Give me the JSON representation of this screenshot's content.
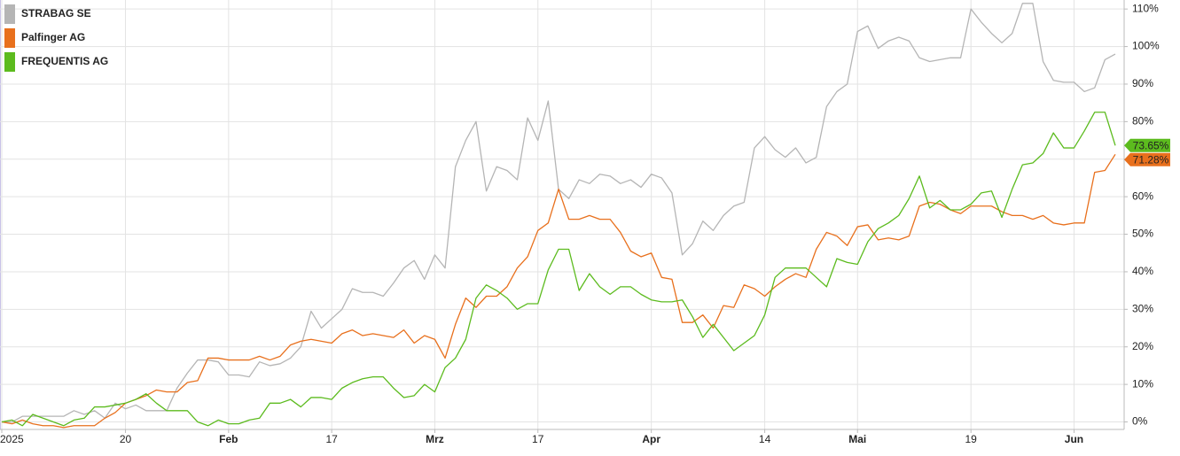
{
  "chart_data": {
    "type": "line",
    "categories": [
      "2025",
      null,
      null,
      null,
      null,
      null,
      null,
      null,
      null,
      null,
      null,
      null,
      "20",
      null,
      null,
      null,
      null,
      null,
      null,
      null,
      null,
      null,
      "Feb",
      null,
      null,
      null,
      null,
      null,
      null,
      null,
      null,
      null,
      "17",
      null,
      null,
      null,
      null,
      null,
      null,
      null,
      null,
      null,
      "Mrz",
      null,
      null,
      null,
      null,
      null,
      null,
      null,
      null,
      null,
      "17",
      null,
      null,
      null,
      null,
      null,
      null,
      null,
      null,
      null,
      null,
      "Apr",
      null,
      null,
      null,
      null,
      null,
      null,
      null,
      null,
      null,
      null,
      "14",
      null,
      null,
      null,
      null,
      null,
      null,
      null,
      null,
      "Mai",
      null,
      null,
      null,
      null,
      null,
      null,
      null,
      null,
      null,
      null,
      "19",
      null,
      null,
      null,
      null,
      null,
      null,
      null,
      null,
      null,
      "Jun",
      null,
      null,
      null,
      null
    ],
    "series": [
      {
        "name": "STRABAG SE",
        "color": "#b5b5b5",
        "values": [
          0,
          0,
          1.5,
          1.5,
          1.5,
          1.5,
          1.5,
          3,
          2,
          3,
          1,
          5,
          3.5,
          4.5,
          3,
          3,
          3,
          9,
          13,
          16.5,
          16.5,
          16,
          12.5,
          12.5,
          12,
          16,
          15,
          15.5,
          17,
          20,
          29.5,
          25,
          27.5,
          30,
          35.5,
          34.5,
          34.5,
          33.5,
          37,
          41,
          43,
          38,
          44.5,
          41,
          68,
          75,
          80,
          61.5,
          68,
          67,
          64.5,
          81,
          75,
          85.5,
          62,
          59.5,
          64.5,
          63.5,
          66,
          65.5,
          63.5,
          64.5,
          62.5,
          66,
          65,
          61,
          44.5,
          47.5,
          53.5,
          51,
          55,
          57.5,
          58.5,
          73,
          76,
          72.5,
          70.5,
          73,
          69,
          70.5,
          84,
          88,
          90,
          104,
          105.5,
          99.5,
          101.5,
          102.5,
          101.5,
          97,
          96,
          96.5,
          97,
          97,
          110,
          106.5,
          103.5,
          101,
          103.5,
          111.5,
          111.5,
          96,
          91,
          90.5,
          90.5,
          88,
          89,
          96.5,
          98
        ]
      },
      {
        "name": "Palfinger AG",
        "color": "#e8701d",
        "values": [
          0,
          -0.5,
          0.5,
          -0.5,
          -1,
          -1,
          -1.5,
          -1,
          -1,
          -1,
          1,
          2.5,
          5,
          6,
          7,
          8.5,
          8,
          8,
          10.5,
          11,
          17,
          17,
          16.5,
          16.5,
          16.5,
          17.5,
          16.5,
          17.5,
          20.5,
          21.5,
          22,
          21.5,
          21,
          23.5,
          24.5,
          23,
          23.5,
          23,
          22.5,
          24.5,
          21,
          23,
          22,
          17,
          26,
          33,
          30.5,
          33.5,
          33.5,
          36,
          41,
          44,
          51,
          53,
          62,
          54,
          54,
          55,
          54,
          54,
          50.5,
          45.5,
          44,
          45,
          38.5,
          38,
          26.5,
          26.5,
          28.5,
          25,
          31,
          30.5,
          36.5,
          35.5,
          33.5,
          36,
          38,
          39.5,
          38.5,
          46,
          50.5,
          49.5,
          47,
          52,
          52.5,
          48.5,
          49,
          48.5,
          49.5,
          57.5,
          58.5,
          58,
          56.5,
          55.5,
          57.5,
          57.5,
          57.5,
          56,
          55,
          55,
          54,
          55,
          53,
          52.5,
          53,
          53,
          66.5,
          67,
          71.28
        ],
        "value_labels": [
          null,
          null,
          null,
          null,
          null,
          null,
          null,
          null,
          null,
          null,
          null,
          null,
          null,
          null,
          null,
          null,
          null,
          null,
          null,
          null,
          null,
          null,
          null,
          null,
          null,
          null,
          null,
          null,
          null,
          null,
          null,
          null,
          null,
          null,
          null,
          null,
          null,
          null,
          null,
          null,
          null,
          null,
          null,
          null,
          null,
          null,
          null,
          null,
          null,
          null,
          null,
          null,
          null,
          null,
          null,
          null,
          null,
          null,
          null,
          null,
          null,
          null,
          null,
          null,
          null,
          null,
          null,
          null,
          null,
          null,
          null,
          null,
          null,
          null,
          null,
          null,
          null,
          null,
          null,
          null,
          null,
          null,
          null,
          null,
          null,
          null,
          null,
          null,
          null,
          null,
          null,
          null,
          null,
          null,
          null,
          null,
          null,
          null,
          null,
          null,
          null,
          null,
          null,
          null,
          null,
          null,
          null,
          null,
          "71.28%"
        ]
      },
      {
        "name": "FREQUENTIS AG",
        "color": "#5cbb1e",
        "values": [
          0,
          0.5,
          -1,
          2,
          1,
          0,
          -1,
          0.5,
          1,
          4,
          4,
          4.5,
          5,
          6,
          7.5,
          5,
          3,
          3,
          3,
          0,
          -1,
          0.5,
          -0.5,
          -0.5,
          0.5,
          1,
          5,
          5,
          6,
          4,
          6.5,
          6.5,
          6,
          9,
          10.5,
          11.5,
          12,
          12,
          9,
          6.5,
          7,
          10,
          8,
          14.5,
          17,
          22,
          33,
          36.5,
          35,
          33,
          30,
          31.5,
          31.5,
          40.5,
          46,
          46,
          35,
          39.5,
          36,
          34,
          36,
          36,
          34,
          32.5,
          32,
          32,
          32.5,
          28,
          22.5,
          26,
          22.5,
          19,
          21,
          23,
          28.5,
          38.5,
          41,
          41,
          41,
          38.5,
          36,
          43.5,
          42.5,
          42,
          48,
          51.5,
          53,
          55,
          59.5,
          65.5,
          57,
          59,
          56.5,
          56.5,
          58,
          61,
          61.5,
          54.5,
          62,
          68.5,
          69,
          71.5,
          77,
          73,
          73,
          77.5,
          82.5,
          82.5,
          73.65
        ],
        "value_labels": [
          null,
          null,
          null,
          null,
          null,
          null,
          null,
          null,
          null,
          null,
          null,
          null,
          null,
          null,
          null,
          null,
          null,
          null,
          null,
          null,
          null,
          null,
          null,
          null,
          null,
          null,
          null,
          null,
          null,
          null,
          null,
          null,
          null,
          null,
          null,
          null,
          null,
          null,
          null,
          null,
          null,
          null,
          null,
          null,
          null,
          null,
          null,
          null,
          null,
          null,
          null,
          null,
          null,
          null,
          null,
          null,
          null,
          null,
          null,
          null,
          null,
          null,
          null,
          null,
          null,
          null,
          null,
          null,
          null,
          null,
          null,
          null,
          null,
          null,
          null,
          null,
          null,
          null,
          null,
          null,
          null,
          null,
          null,
          null,
          null,
          null,
          null,
          null,
          null,
          null,
          null,
          null,
          null,
          null,
          null,
          null,
          null,
          null,
          null,
          null,
          null,
          null,
          null,
          null,
          null,
          null,
          null,
          null,
          "73.65%"
        ]
      }
    ],
    "ylim": [
      -2,
      112.4
    ],
    "yticks": [
      {
        "value": 0,
        "label": "0%"
      },
      {
        "value": 10,
        "label": "10%"
      },
      {
        "value": 20,
        "label": "20%"
      },
      {
        "value": 30,
        "label": "30%"
      },
      {
        "value": 40,
        "label": "40%"
      },
      {
        "value": 50,
        "label": "50%"
      },
      {
        "value": 60,
        "label": "60%"
      },
      {
        "value": 70,
        "label": "70%"
      },
      {
        "value": 80,
        "label": "80%"
      },
      {
        "value": 90,
        "label": "90%"
      },
      {
        "value": 100,
        "label": "100%"
      },
      {
        "value": 110,
        "label": "110%"
      }
    ],
    "grid": true,
    "legend": "top-left"
  }
}
